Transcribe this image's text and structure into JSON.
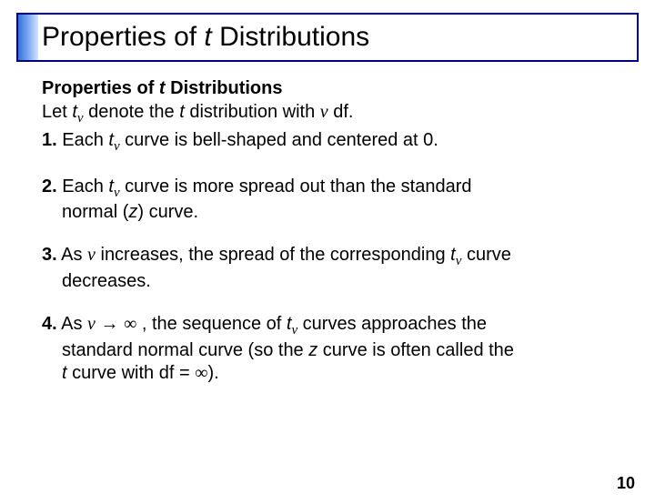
{
  "title": {
    "pre": "Properties of ",
    "italic": "t",
    "post": " Distributions"
  },
  "subtitle": {
    "pre": "Properties of ",
    "italic": "t",
    "post": " Distributions"
  },
  "intro": {
    "a": "Let ",
    "b": "t",
    "c": " denote the ",
    "d": "t",
    "e": " distribution with ",
    "f": " df."
  },
  "items": {
    "n1a": "1.",
    "n1b": " Each ",
    "n1c": "t",
    "n1d": " curve is bell-shaped and centered at 0.",
    "n2a": "2.",
    "n2b": " Each ",
    "n2c": "t",
    "n2d": " curve is more spread out than the standard",
    "n2e": "normal (",
    "n2f": "z",
    "n2g": ") curve.",
    "n3a": "3.",
    "n3b": " As ",
    "n3c": " increases, the spread of the corresponding ",
    "n3d": "t",
    "n3e": " curve",
    "n3f": "decreases.",
    "n4a": "4.",
    "n4b": " As ",
    "n4c": " , the sequence of ",
    "n4d": "t",
    "n4e": " curves approaches the",
    "n4f": "standard normal curve (so the ",
    "n4g": "z",
    "n4h": " curve is often called the",
    "n4i": "t",
    "n4j": " curve with df = ",
    "n4k": ")."
  },
  "symbols": {
    "nu": "ν",
    "arrow": "→",
    "inf": "∞"
  },
  "pageNumber": "10",
  "colors": {
    "border": "#000080",
    "gradientStart": "#3a6fd8",
    "gradientMid": "#7ba8f0",
    "gradientEnd": "#d8e6fb",
    "text": "#000000",
    "background": "#ffffff"
  },
  "typography": {
    "titleSize": 30,
    "bodySize": 20,
    "pageNumSize": 18
  }
}
